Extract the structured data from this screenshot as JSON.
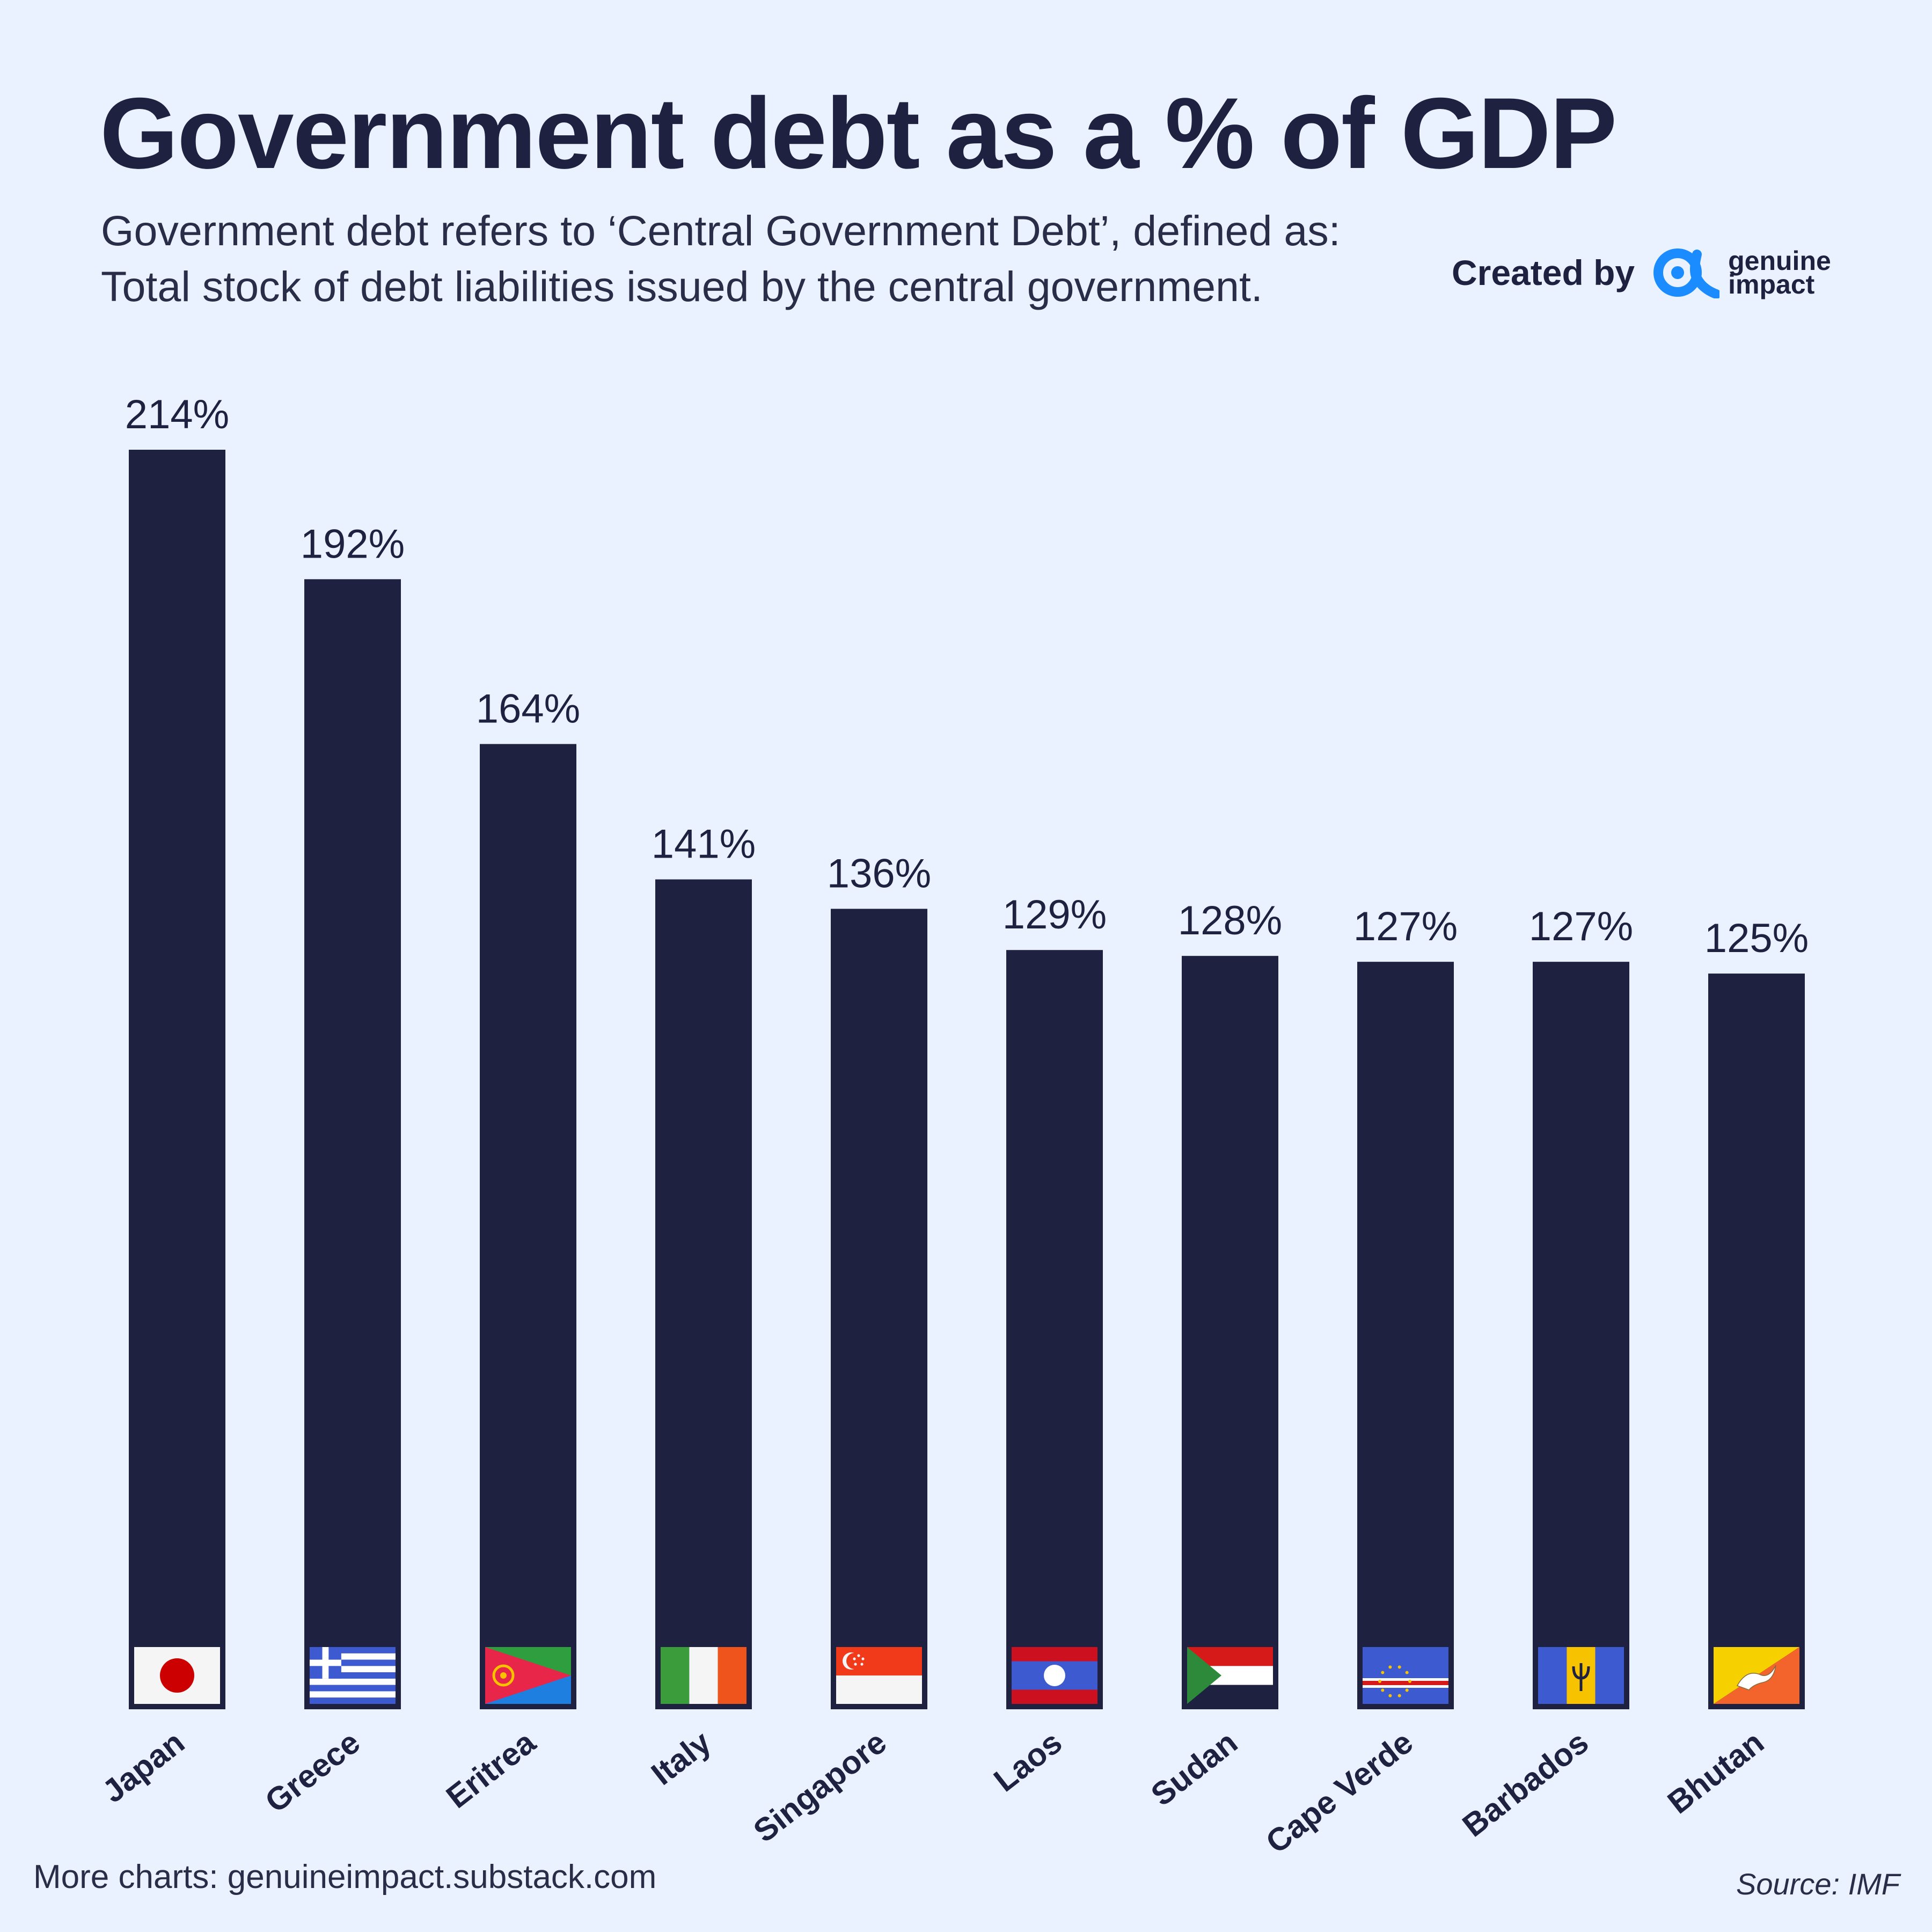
{
  "header": {
    "title": "Government debt as a % of GDP",
    "subtitle_line1": "Government debt refers to ‘Central Government Debt’, defined as:",
    "subtitle_line2": "Total stock of debt liabilities issued by the central government."
  },
  "credit": {
    "label": "Created by",
    "brand_line1": "genuine",
    "brand_line2": "impact",
    "brand_color": "#1a8cff"
  },
  "footer": {
    "more_charts": "More charts: genuineimpact.substack.com",
    "source": "Source: IMF"
  },
  "colors": {
    "background": "#ebf2ff",
    "bar": "#1e2140",
    "text": "#1e2140"
  },
  "chart_data": {
    "type": "bar",
    "title": "Government debt as a % of GDP",
    "xlabel": "",
    "ylabel": "",
    "value_suffix": "%",
    "ylim": [
      0,
      214
    ],
    "grid": false,
    "categories": [
      "Japan",
      "Greece",
      "Eritrea",
      "Italy",
      "Singapore",
      "Laos",
      "Sudan",
      "Cape Verde",
      "Barbados",
      "Bhutan"
    ],
    "values": [
      214,
      192,
      164,
      141,
      136,
      129,
      128,
      127,
      127,
      125
    ],
    "flags": [
      "japan-flag-icon",
      "greece-flag-icon",
      "eritrea-flag-icon",
      "italy-flag-icon",
      "singapore-flag-icon",
      "laos-flag-icon",
      "sudan-flag-icon",
      "cape-verde-flag-icon",
      "barbados-flag-icon",
      "bhutan-flag-icon"
    ]
  }
}
